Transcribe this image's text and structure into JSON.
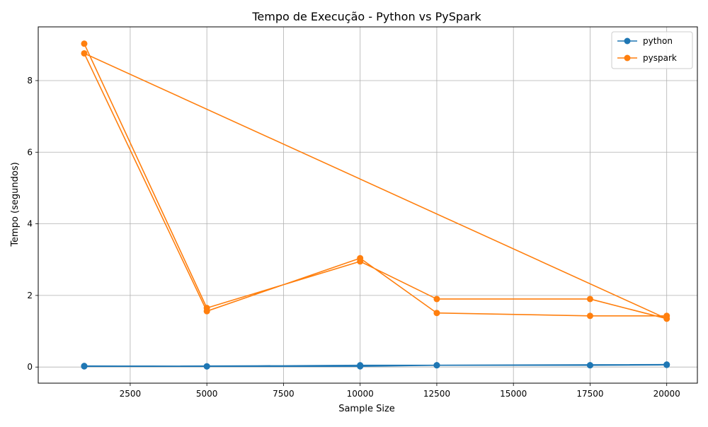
{
  "chart_data": {
    "type": "line",
    "title": "Tempo de Execução - Python vs PySpark",
    "xlabel": "Sample Size",
    "ylabel": "Tempo (segundos)",
    "xlim": [
      -500,
      21000
    ],
    "ylim": [
      -0.45,
      9.5
    ],
    "xticks": [
      2500,
      5000,
      7500,
      10000,
      12500,
      15000,
      17500,
      20000
    ],
    "yticks": [
      0,
      2,
      4,
      6,
      8
    ],
    "grid": true,
    "legend_position": "top-right",
    "series": [
      {
        "name": "python",
        "color": "#1f77b4",
        "x": [
          1000,
          5000,
          10000,
          12500,
          17500,
          20000,
          1000,
          5000,
          10000,
          12500,
          17500,
          20000
        ],
        "y": [
          0.03,
          0.02,
          0.05,
          0.05,
          0.05,
          0.07,
          0.02,
          0.02,
          0.02,
          0.05,
          0.05,
          0.06
        ]
      },
      {
        "name": "pyspark",
        "color": "#ff7f0e",
        "x": [
          1000,
          5000,
          10000,
          12500,
          17500,
          20000,
          1000,
          5000,
          10000,
          12500,
          17500,
          20000
        ],
        "y": [
          9.03,
          1.65,
          2.95,
          1.9,
          1.9,
          1.35,
          8.76,
          1.56,
          3.04,
          1.51,
          1.43,
          1.43
        ]
      }
    ]
  }
}
